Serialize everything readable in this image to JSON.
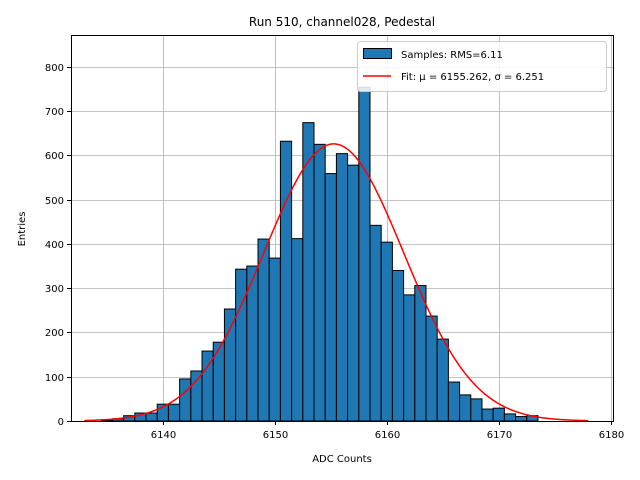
{
  "chart_data": {
    "type": "bar",
    "title": "Run 510, channel028, Pedestal",
    "xlabel": "ADC Counts",
    "ylabel": "Entries",
    "xlim": [
      6131.8,
      6180.2
    ],
    "ylim": [
      0,
      872
    ],
    "xticks": [
      6140,
      6150,
      6160,
      6170,
      6180
    ],
    "yticks": [
      0,
      100,
      200,
      300,
      400,
      500,
      600,
      700,
      800
    ],
    "grid": true,
    "bin_width": 1,
    "bins": [
      {
        "x": 6135,
        "value": 2
      },
      {
        "x": 6136,
        "value": 5
      },
      {
        "x": 6137,
        "value": 12
      },
      {
        "x": 6138,
        "value": 18
      },
      {
        "x": 6139,
        "value": 18
      },
      {
        "x": 6140,
        "value": 38
      },
      {
        "x": 6141,
        "value": 38
      },
      {
        "x": 6142,
        "value": 95
      },
      {
        "x": 6143,
        "value": 113
      },
      {
        "x": 6144,
        "value": 158
      },
      {
        "x": 6145,
        "value": 178
      },
      {
        "x": 6146,
        "value": 253
      },
      {
        "x": 6147,
        "value": 343
      },
      {
        "x": 6148,
        "value": 350
      },
      {
        "x": 6149,
        "value": 411
      },
      {
        "x": 6150,
        "value": 368
      },
      {
        "x": 6151,
        "value": 632
      },
      {
        "x": 6152,
        "value": 412
      },
      {
        "x": 6153,
        "value": 674
      },
      {
        "x": 6154,
        "value": 625
      },
      {
        "x": 6155,
        "value": 559
      },
      {
        "x": 6156,
        "value": 604
      },
      {
        "x": 6157,
        "value": 578
      },
      {
        "x": 6158,
        "value": 754
      },
      {
        "x": 6159,
        "value": 442
      },
      {
        "x": 6160,
        "value": 404
      },
      {
        "x": 6161,
        "value": 340
      },
      {
        "x": 6162,
        "value": 285
      },
      {
        "x": 6163,
        "value": 306
      },
      {
        "x": 6164,
        "value": 237
      },
      {
        "x": 6165,
        "value": 185
      },
      {
        "x": 6166,
        "value": 88
      },
      {
        "x": 6167,
        "value": 59
      },
      {
        "x": 6168,
        "value": 50
      },
      {
        "x": 6169,
        "value": 27
      },
      {
        "x": 6170,
        "value": 29
      },
      {
        "x": 6171,
        "value": 16
      },
      {
        "x": 6172,
        "value": 10
      },
      {
        "x": 6173,
        "value": 12
      }
    ],
    "fit": {
      "mu": 6155.262,
      "sigma": 6.251,
      "amplitude": 626,
      "x_range": [
        6133,
        6178
      ]
    },
    "legend": {
      "position": "upper right",
      "entries": [
        {
          "label": "Samples: RMS=6.11",
          "kind": "bar",
          "color": "#1f77b4"
        },
        {
          "label": "Fit: μ = 6155.262, σ = 6.251",
          "kind": "line",
          "color": "#ff0000"
        }
      ]
    },
    "colors": {
      "bar_fill": "#1f77b4",
      "bar_edge": "#000000",
      "fit_line": "#ff0000",
      "grid": "#b0b0b0"
    }
  }
}
